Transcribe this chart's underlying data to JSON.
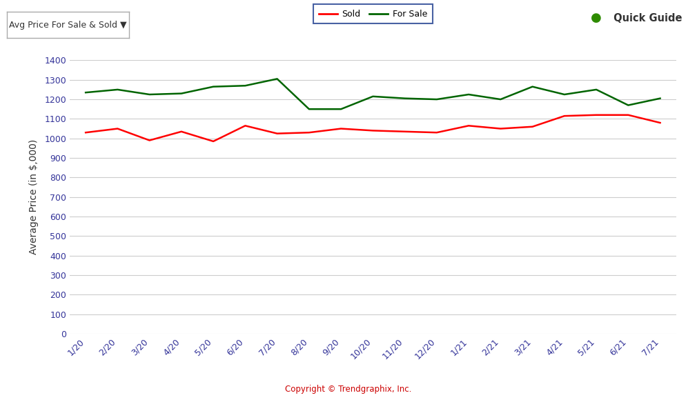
{
  "x_labels": [
    "1/20",
    "2/20",
    "3/20",
    "4/20",
    "5/20",
    "6/20",
    "7/20",
    "8/20",
    "9/20",
    "10/20",
    "11/20",
    "12/20",
    "1/21",
    "2/21",
    "3/21",
    "4/21",
    "5/21",
    "6/21",
    "7/21"
  ],
  "sold_values": [
    1030,
    1050,
    990,
    1035,
    985,
    1065,
    1025,
    1030,
    1050,
    1040,
    1035,
    1030,
    1065,
    1050,
    1060,
    1115,
    1120,
    1120,
    1080
  ],
  "for_sale_values": [
    1235,
    1250,
    1225,
    1230,
    1265,
    1270,
    1305,
    1150,
    1150,
    1215,
    1205,
    1200,
    1225,
    1200,
    1265,
    1225,
    1250,
    1170,
    1205
  ],
  "sold_color": "#ff0000",
  "for_sale_color": "#006400",
  "ylabel": "Average Price (in $,000)",
  "ylim": [
    0,
    1400
  ],
  "yticks": [
    0,
    100,
    200,
    300,
    400,
    500,
    600,
    700,
    800,
    900,
    1000,
    1100,
    1200,
    1300,
    1400
  ],
  "legend_labels": [
    "Sold",
    "For Sale"
  ],
  "legend_border_color": "#1a3a8c",
  "copyright_text": "Copyright © Trendgraphix, Inc.",
  "background_color": "#ffffff",
  "grid_color": "#cccccc",
  "button_text": "Avg Price For Sale & Sold ▼",
  "quick_guide_text": " Quick Guide",
  "tick_fontsize": 9,
  "axis_fontsize": 10,
  "legend_fontsize": 9,
  "copyright_fontsize": 8.5
}
